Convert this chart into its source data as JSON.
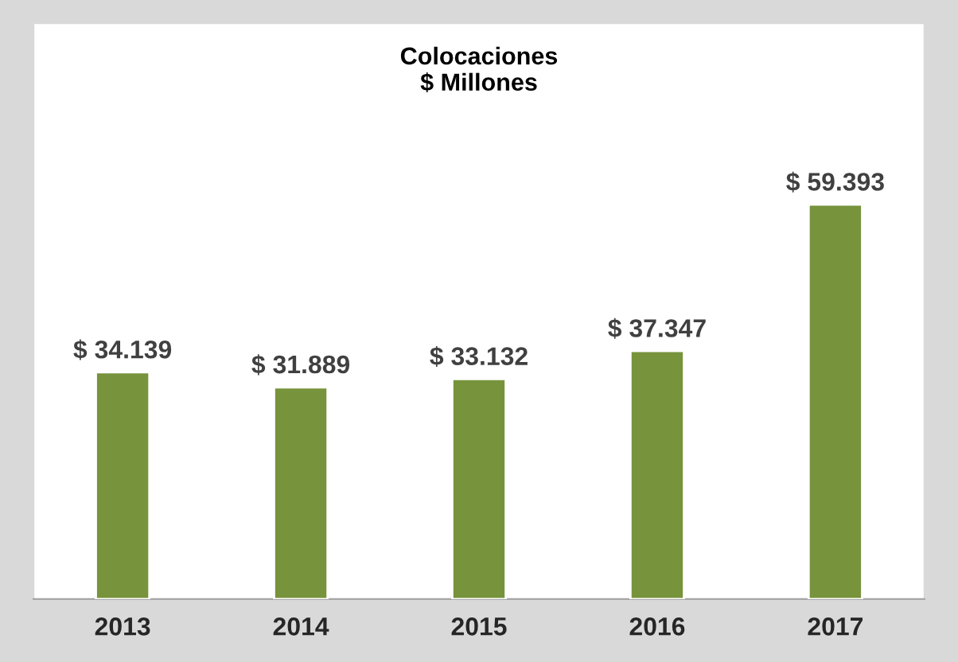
{
  "chart_data": {
    "type": "bar",
    "title": "Colocaciones\n$ Millones",
    "categories": [
      "2013",
      "2014",
      "2015",
      "2016",
      "2017"
    ],
    "values": [
      34139,
      31889,
      33132,
      37347,
      59393
    ],
    "value_labels": [
      "$ 34.139",
      "$ 31.889",
      "$ 33.132",
      "$ 37.347",
      "$ 59.393"
    ],
    "color": "#77933c",
    "grid": false,
    "legend": false
  }
}
